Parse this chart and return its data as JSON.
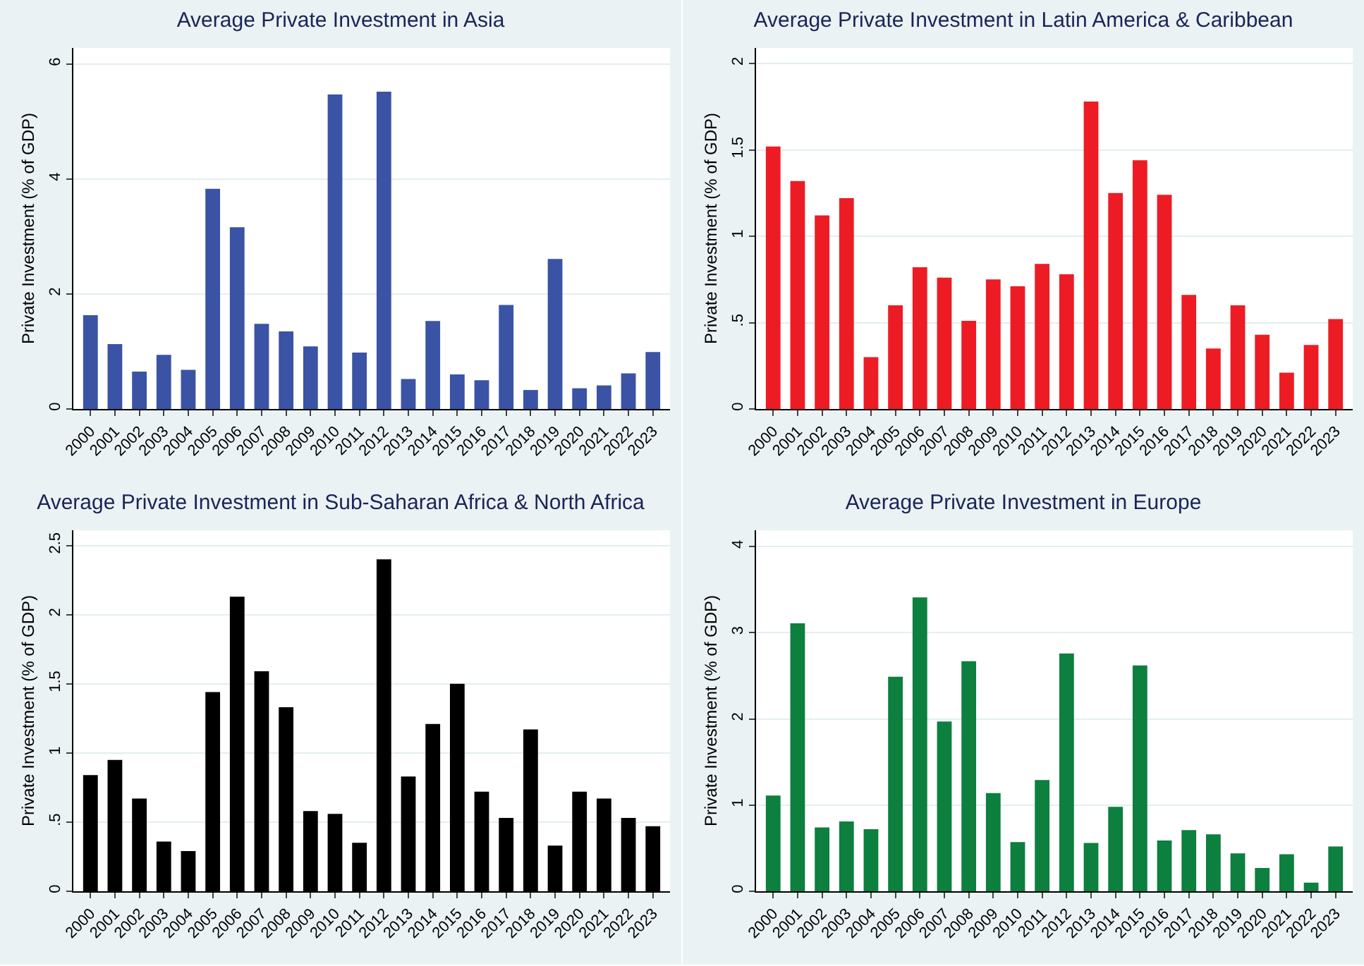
{
  "chart_data": [
    {
      "type": "bar",
      "title": "Average Private Investment in Asia",
      "ylabel": "Private Investment (% of GDP)",
      "categories": [
        "2000",
        "2001",
        "2002",
        "2003",
        "2004",
        "2005",
        "2006",
        "2007",
        "2008",
        "2009",
        "2010",
        "2011",
        "2012",
        "2013",
        "2014",
        "2015",
        "2016",
        "2017",
        "2018",
        "2019",
        "2020",
        "2021",
        "2022",
        "2023"
      ],
      "color": "#3a53a4",
      "values": [
        1.63,
        1.13,
        0.65,
        0.94,
        0.68,
        3.83,
        3.16,
        1.48,
        1.35,
        1.09,
        5.47,
        0.98,
        5.52,
        0.52,
        1.53,
        0.6,
        0.5,
        1.81,
        0.33,
        2.61,
        0.36,
        0.41,
        0.62,
        0.99
      ],
      "ylim": [
        0,
        6.28
      ],
      "yticks": [
        0,
        2,
        4,
        6
      ],
      "grid": "y"
    },
    {
      "type": "bar",
      "title": "Average Private Investment in Latin America & Caribbean",
      "ylabel": "Private Investment (% of GDP)",
      "categories": [
        "2000",
        "2001",
        "2002",
        "2003",
        "2004",
        "2005",
        "2006",
        "2007",
        "2008",
        "2009",
        "2010",
        "2011",
        "2012",
        "2013",
        "2014",
        "2015",
        "2016",
        "2017",
        "2018",
        "2019",
        "2020",
        "2021",
        "2022",
        "2023"
      ],
      "color": "#ed1c24",
      "values": [
        1.52,
        1.32,
        1.12,
        1.22,
        0.3,
        0.6,
        0.82,
        0.76,
        0.51,
        0.75,
        0.71,
        0.84,
        0.78,
        1.78,
        1.25,
        1.44,
        1.24,
        0.66,
        0.35,
        0.6,
        0.43,
        0.21,
        0.37,
        0.52
      ],
      "ylim": [
        0,
        2.09
      ],
      "yticks": [
        0,
        {
          "value": 0.5,
          "label": ".5"
        },
        1,
        1.5,
        2
      ],
      "grid": "y"
    },
    {
      "type": "bar",
      "title": "Average Private Investment in Sub-Saharan Africa & North Africa",
      "ylabel": "Private Investment (% of GDP)",
      "categories": [
        "2000",
        "2001",
        "2002",
        "2003",
        "2004",
        "2005",
        "2006",
        "2007",
        "2008",
        "2009",
        "2010",
        "2011",
        "2012",
        "2013",
        "2014",
        "2015",
        "2016",
        "2017",
        "2018",
        "2019",
        "2020",
        "2021",
        "2022",
        "2023"
      ],
      "color": "#000000",
      "values": [
        0.84,
        0.95,
        0.67,
        0.36,
        0.29,
        1.44,
        2.13,
        1.59,
        1.33,
        0.58,
        0.56,
        0.35,
        2.4,
        0.83,
        1.21,
        1.5,
        0.72,
        0.53,
        1.17,
        0.33,
        0.72,
        0.67,
        0.53,
        0.47
      ],
      "ylim": [
        0,
        2.61
      ],
      "yticks": [
        0,
        {
          "value": 0.5,
          "label": ".5"
        },
        1,
        1.5,
        2,
        2.5
      ],
      "grid": "y"
    },
    {
      "type": "bar",
      "title": "Average Private Investment in Europe",
      "ylabel": "Private Investment (% of GDP)",
      "categories": [
        "2000",
        "2001",
        "2002",
        "2003",
        "2004",
        "2005",
        "2006",
        "2007",
        "2008",
        "2009",
        "2010",
        "2011",
        "2012",
        "2013",
        "2014",
        "2015",
        "2016",
        "2017",
        "2018",
        "2019",
        "2020",
        "2021",
        "2022",
        "2023"
      ],
      "color": "#0d7f3f",
      "values": [
        1.11,
        3.11,
        0.74,
        0.81,
        0.72,
        2.49,
        3.41,
        1.97,
        2.67,
        1.14,
        0.57,
        1.29,
        2.76,
        0.56,
        0.98,
        2.62,
        0.59,
        0.71,
        0.66,
        0.44,
        0.27,
        0.43,
        0.1,
        0.52
      ],
      "ylim": [
        0,
        4.19
      ],
      "yticks": [
        0,
        1,
        2,
        3,
        4
      ],
      "grid": "y"
    }
  ]
}
